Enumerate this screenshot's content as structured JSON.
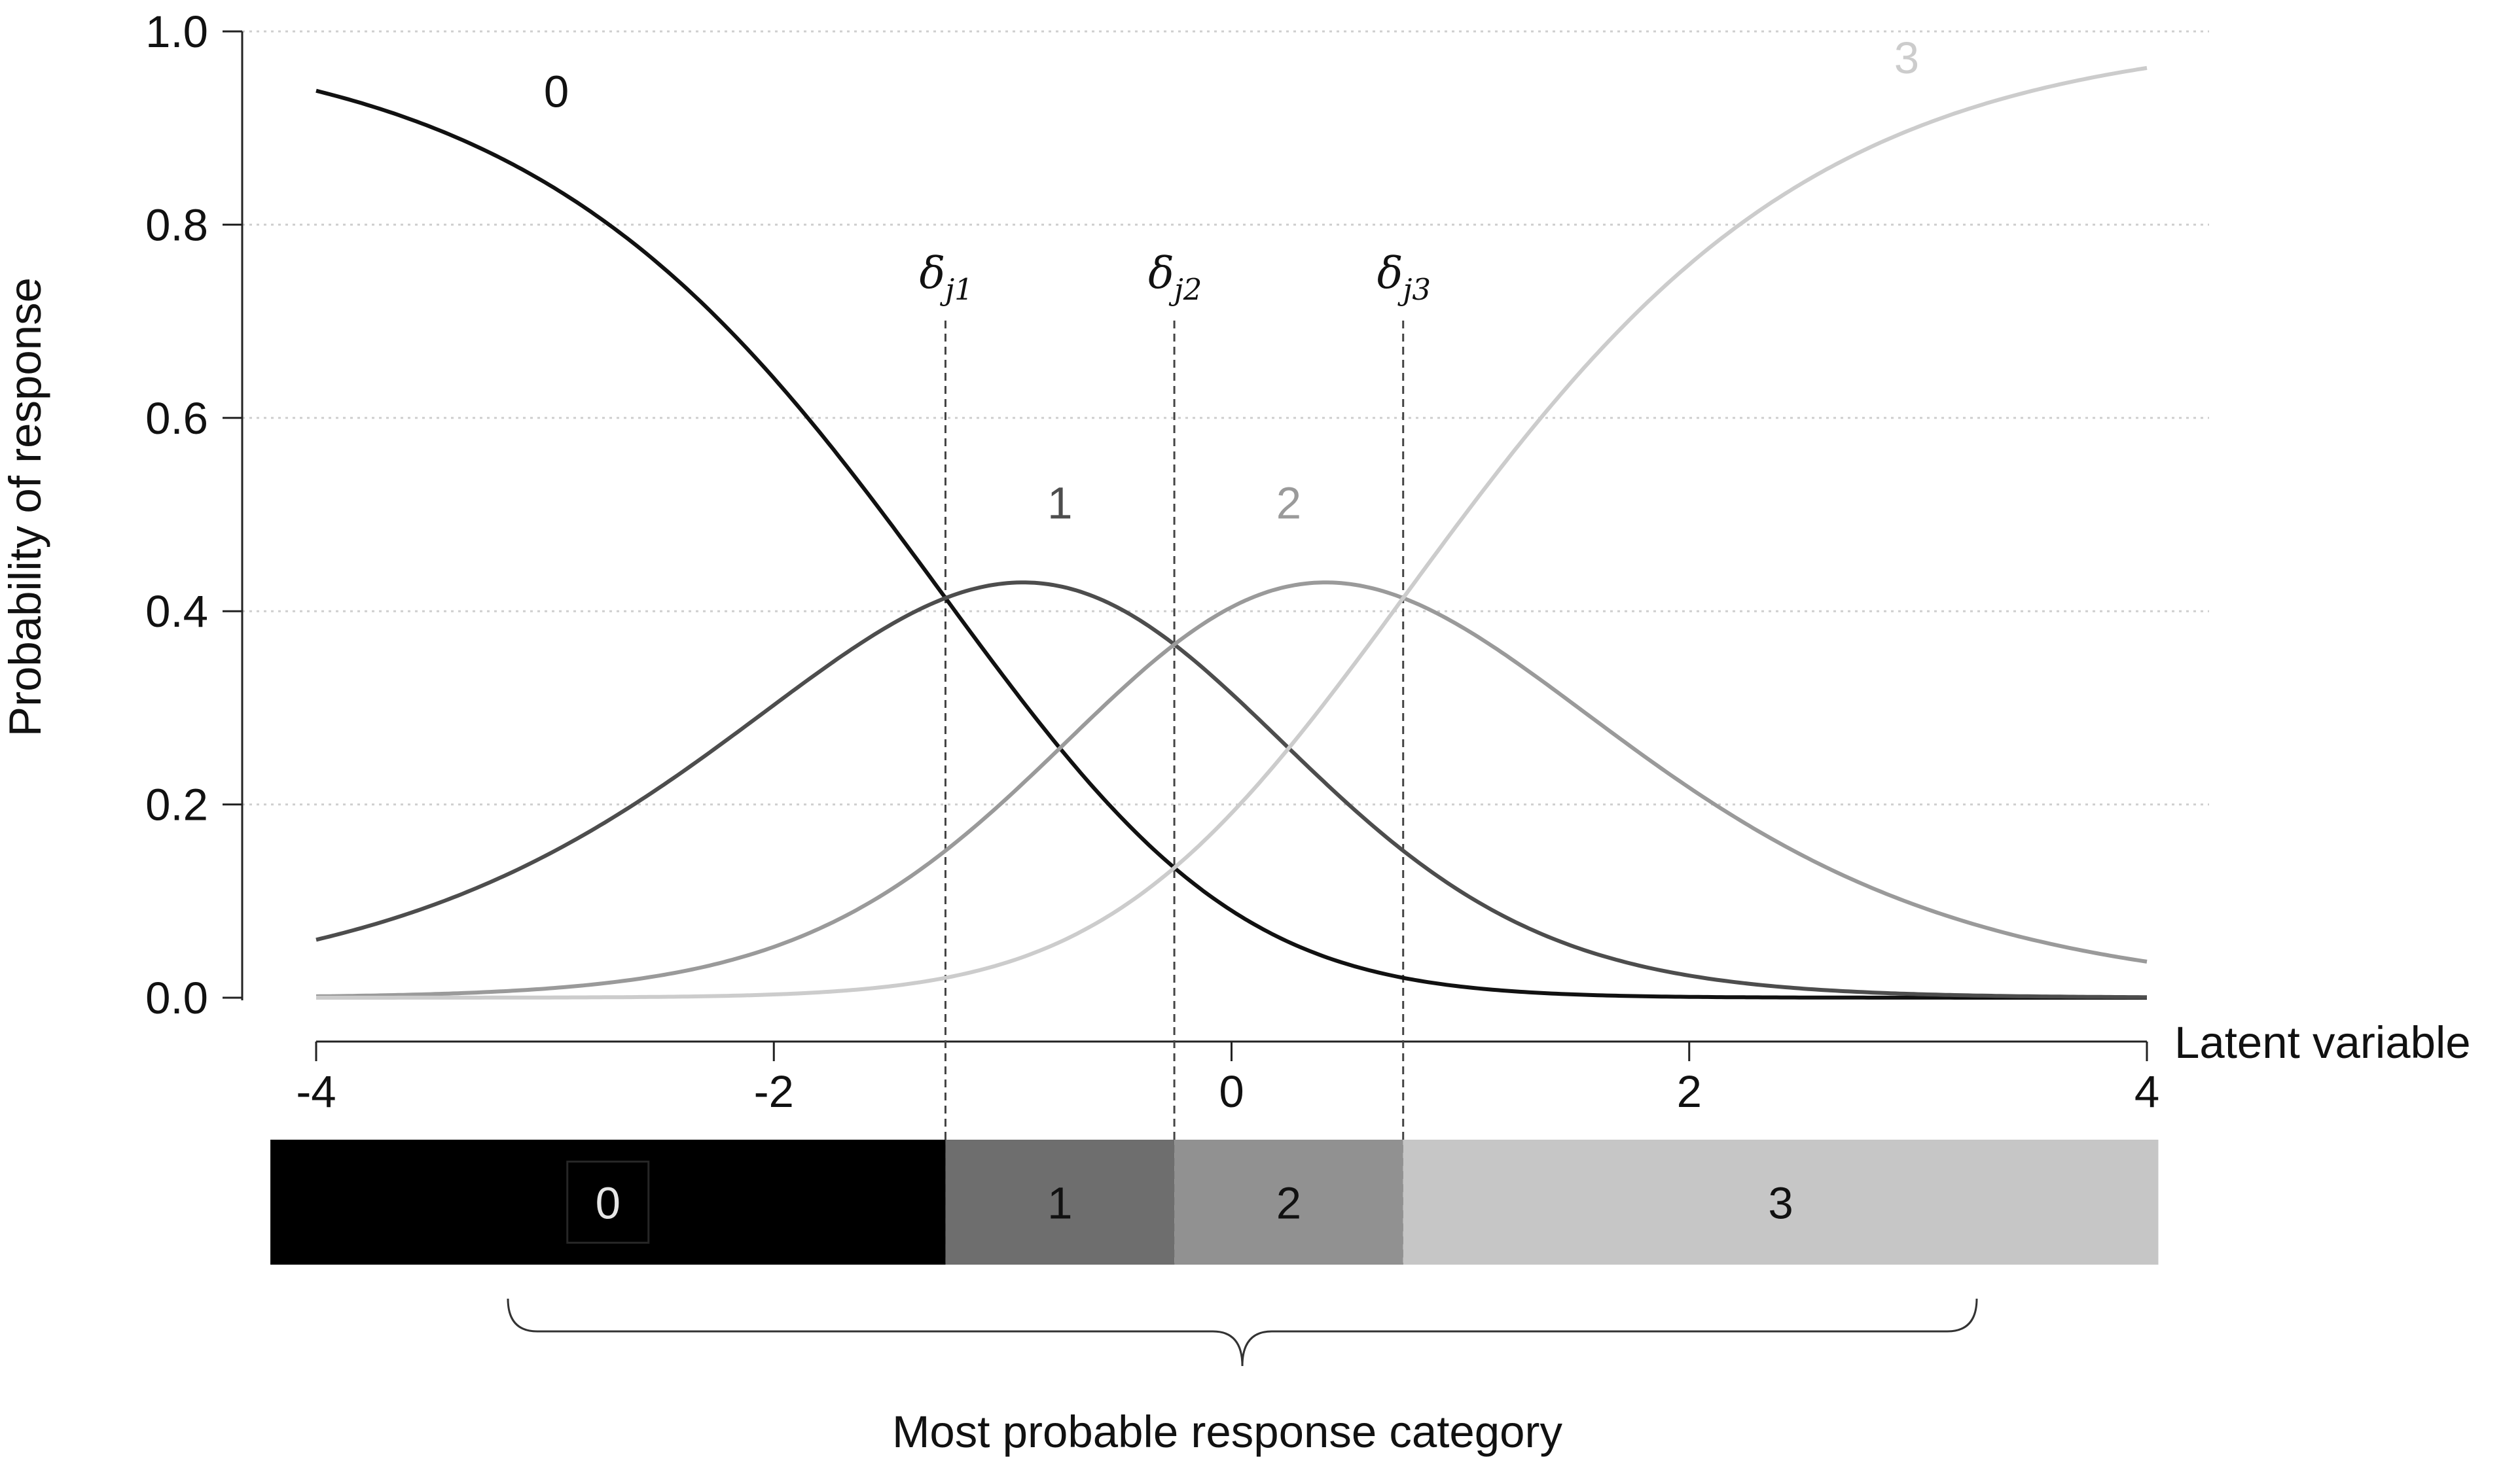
{
  "chart_data": {
    "type": "line",
    "title": "",
    "xlabel": "Latent variable",
    "ylabel": "Probability of response",
    "xlim": [
      -4,
      4
    ],
    "ylim": [
      0,
      1
    ],
    "x_ticks": [
      "-4",
      "-2",
      "0",
      "2",
      "4"
    ],
    "y_ticks": [
      "0.0",
      "0.2",
      "0.4",
      "0.6",
      "0.8",
      "1.0"
    ],
    "grid": "horizontal dotted",
    "legend": "none",
    "series": [
      {
        "name": "0",
        "color": "#111111",
        "model": "partial-credit category curve"
      },
      {
        "name": "1",
        "color": "#4d4d4d",
        "model": "partial-credit category curve"
      },
      {
        "name": "2",
        "color": "#9a9a9a",
        "model": "partial-credit category curve"
      },
      {
        "name": "3",
        "color": "#cccccc",
        "model": "partial-credit category curve"
      }
    ],
    "thresholds": [
      {
        "label": "δ",
        "subscript": "j1",
        "value": -1.25
      },
      {
        "label": "δ",
        "subscript": "j2",
        "value": -0.25
      },
      {
        "label": "δ",
        "subscript": "j3",
        "value": 0.75
      }
    ],
    "category_bar": {
      "segments": [
        {
          "label": "0",
          "from": -4.2,
          "to": -1.25,
          "color": "#000000",
          "text_color": "#e6e6e6"
        },
        {
          "label": "1",
          "from": -1.25,
          "to": -0.25,
          "color": "#6e6e6e",
          "text_color": "#111111"
        },
        {
          "label": "2",
          "from": -0.25,
          "to": 0.75,
          "color": "#919191",
          "text_color": "#111111"
        },
        {
          "label": "3",
          "from": 0.75,
          "to": 4.05,
          "color": "#c6c6c6",
          "text_color": "#111111"
        }
      ],
      "caption": "Most probable response category"
    }
  }
}
